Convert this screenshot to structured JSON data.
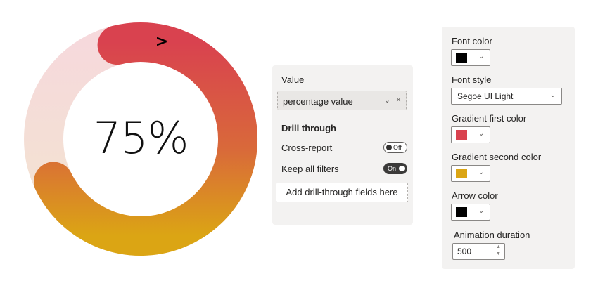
{
  "gauge": {
    "value_percent": 75,
    "label": "75%",
    "arrow_symbol": ">",
    "track_colors": [
      "#f5dada",
      "#f1e2cc"
    ],
    "gradient_first_color": "#d9424f",
    "gradient_second_color": "#dba514",
    "arrow_color": "#000000"
  },
  "fields_pane": {
    "value_heading": "Value",
    "field_name": "percentage value",
    "chevron_icon": "chevron-down-icon",
    "remove_icon": "close-icon",
    "drill_through_heading": "Drill through",
    "cross_report_label": "Cross-report",
    "cross_report_state": "Off",
    "keep_filters_label": "Keep all filters",
    "keep_filters_state": "On",
    "add_fields_label": "Add drill-through fields here"
  },
  "format_pane": {
    "font_color_label": "Font color",
    "font_color": "#000000",
    "font_style_label": "Font style",
    "font_style_value": "Segoe UI Light",
    "gradient_first_label": "Gradient first color",
    "gradient_first_color": "#d9424f",
    "gradient_second_label": "Gradient second color",
    "gradient_second_color": "#dba514",
    "arrow_color_label": "Arrow color",
    "arrow_color": "#000000",
    "animation_label": "Animation duration",
    "animation_value": "500"
  }
}
